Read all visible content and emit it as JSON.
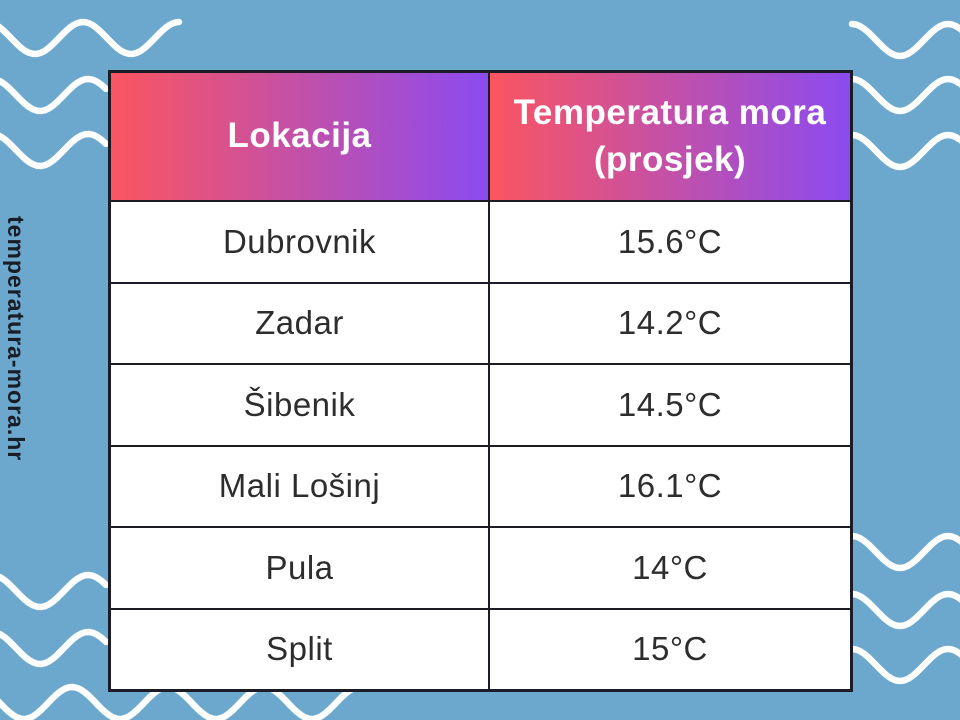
{
  "branding": {
    "text": "temperatura-mora.hr"
  },
  "table": {
    "headers": [
      "Lokacija",
      "Temperatura mora (prosjek)"
    ],
    "rows": [
      {
        "location": "Dubrovnik",
        "temperature": "15.6°C"
      },
      {
        "location": "Zadar",
        "temperature": "14.2°C"
      },
      {
        "location": "Šibenik",
        "temperature": "14.5°C"
      },
      {
        "location": "Mali Lošinj",
        "temperature": "16.1°C"
      },
      {
        "location": "Pula",
        "temperature": "14°C"
      },
      {
        "location": "Split",
        "temperature": "15°C"
      }
    ]
  },
  "chart_data": {
    "type": "table",
    "title": "Temperatura mora (prosjek)",
    "columns": [
      "Lokacija",
      "Temperatura mora (prosjek)"
    ],
    "rows": [
      [
        "Dubrovnik",
        "15.6°C"
      ],
      [
        "Zadar",
        "14.2°C"
      ],
      [
        "Šibenik",
        "14.5°C"
      ],
      [
        "Mali Lošinj",
        "16.1°C"
      ],
      [
        "Pula",
        "14°C"
      ],
      [
        "Split",
        "15°C"
      ]
    ],
    "values_celsius": [
      15.6,
      14.2,
      14.5,
      16.1,
      14,
      15
    ]
  },
  "colors": {
    "background": "#6ca7cd",
    "header_gradient_start": "#fb5560",
    "header_gradient_end": "#8b4bf0",
    "table_border": "#1c1c26",
    "cell_text": "#2d2d2d",
    "header_text": "#ffffff",
    "wave": "#fcfdfd",
    "branding_text": "#181d26"
  }
}
